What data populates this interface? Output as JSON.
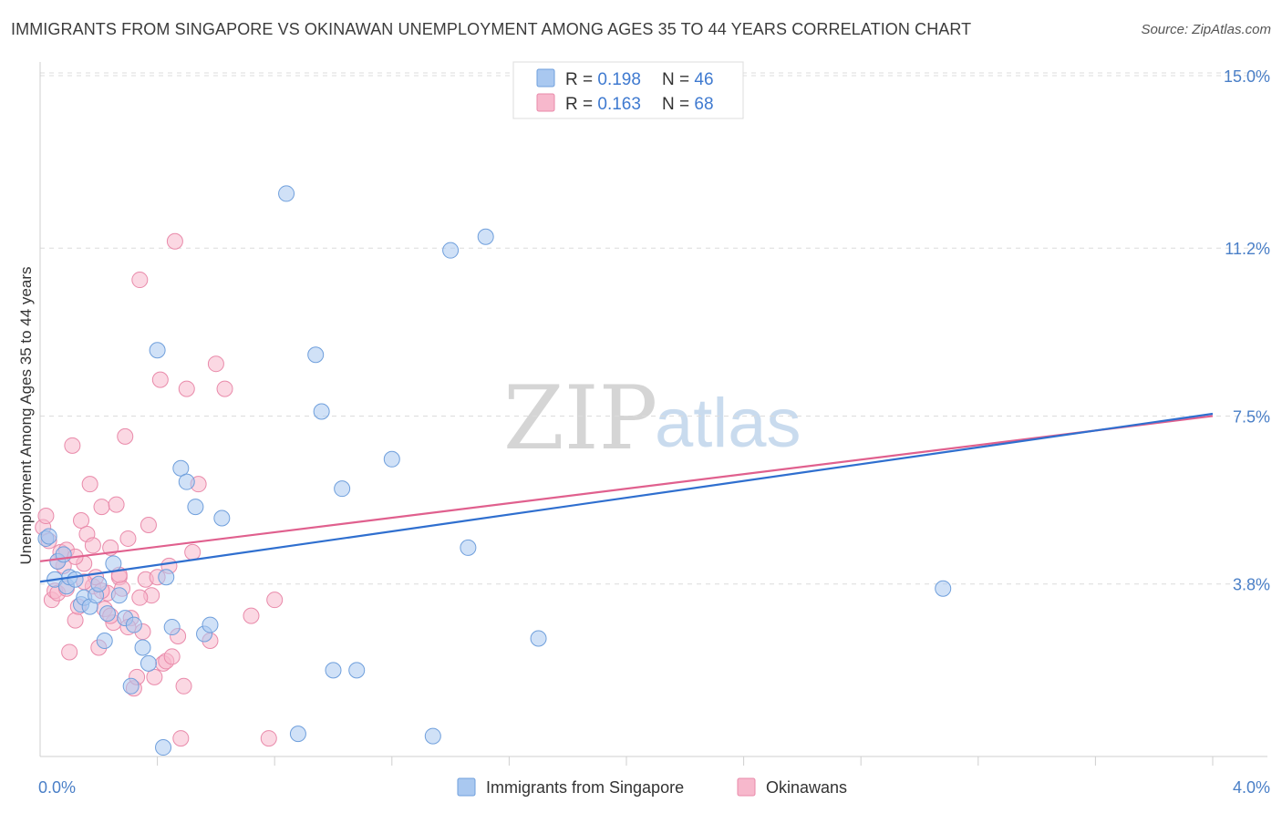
{
  "header": {
    "title": "IMMIGRANTS FROM SINGAPORE VS OKINAWAN UNEMPLOYMENT AMONG AGES 35 TO 44 YEARS CORRELATION CHART",
    "source": "Source: ZipAtlas.com"
  },
  "watermark": {
    "zip": "ZIP",
    "atlas": "atlas"
  },
  "legend_top": {
    "rows": [
      {
        "r_label": "R = ",
        "r_value": "0.198",
        "n_label": "N = ",
        "n_value": "46"
      },
      {
        "r_label": "R = ",
        "r_value": "0.163",
        "n_label": "N = ",
        "n_value": "68"
      }
    ]
  },
  "colors": {
    "singapore_fill": "#a9c8f0",
    "singapore_stroke": "#6f9fdc",
    "singapore_line": "#2f6fcf",
    "okinawan_fill": "#f7b8cc",
    "okinawan_stroke": "#e98aaa",
    "okinawan_line": "#e0608e",
    "tick_color": "#4a7fc7",
    "grid_color": "#dcdcdc"
  },
  "chart_data": {
    "type": "scatter",
    "title": "IMMIGRANTS FROM SINGAPORE VS OKINAWAN UNEMPLOYMENT AMONG AGES 35 TO 44 YEARS CORRELATION CHART",
    "xlabel": "",
    "ylabel": "Unemployment Among Ages 35 to 44 years",
    "xlim": [
      0,
      4.0
    ],
    "ylim": [
      0,
      15.3
    ],
    "x_tick_labels": [
      "0.0%",
      "4.0%"
    ],
    "y_ticks": [
      3.8,
      7.5,
      11.2,
      15.0
    ],
    "y_tick_labels": [
      "3.8%",
      "7.5%",
      "11.2%",
      "15.0%"
    ],
    "legend": [
      "Immigrants from Singapore",
      "Okinawans"
    ],
    "series": [
      {
        "name": "Immigrants from Singapore",
        "R": 0.198,
        "N": 46,
        "trend": {
          "x": [
            0.0,
            4.0
          ],
          "y": [
            3.85,
            7.55
          ]
        },
        "points": [
          [
            0.02,
            4.8
          ],
          [
            0.03,
            4.85
          ],
          [
            0.05,
            3.9
          ],
          [
            0.06,
            4.3
          ],
          [
            0.09,
            3.75
          ],
          [
            0.1,
            3.95
          ],
          [
            0.12,
            3.9
          ],
          [
            0.14,
            3.35
          ],
          [
            0.15,
            3.5
          ],
          [
            0.17,
            3.3
          ],
          [
            0.19,
            3.55
          ],
          [
            0.2,
            3.8
          ],
          [
            0.22,
            2.55
          ],
          [
            0.23,
            3.15
          ],
          [
            0.25,
            4.25
          ],
          [
            0.27,
            3.55
          ],
          [
            0.29,
            3.05
          ],
          [
            0.31,
            1.55
          ],
          [
            0.32,
            2.9
          ],
          [
            0.35,
            2.4
          ],
          [
            0.37,
            2.05
          ],
          [
            0.4,
            8.95
          ],
          [
            0.42,
            0.2
          ],
          [
            0.43,
            3.95
          ],
          [
            0.45,
            2.85
          ],
          [
            0.48,
            6.35
          ],
          [
            0.5,
            6.05
          ],
          [
            0.53,
            5.5
          ],
          [
            0.56,
            2.7
          ],
          [
            0.58,
            2.9
          ],
          [
            0.62,
            5.25
          ],
          [
            0.84,
            12.4
          ],
          [
            0.88,
            0.5
          ],
          [
            0.94,
            8.85
          ],
          [
            0.96,
            7.6
          ],
          [
            1.0,
            1.9
          ],
          [
            1.03,
            5.9
          ],
          [
            1.08,
            1.9
          ],
          [
            1.2,
            6.55
          ],
          [
            1.34,
            0.45
          ],
          [
            1.4,
            11.15
          ],
          [
            1.46,
            4.6
          ],
          [
            1.52,
            11.45
          ],
          [
            1.7,
            2.6
          ],
          [
            3.08,
            3.7
          ],
          [
            0.08,
            4.45
          ]
        ]
      },
      {
        "name": "Okinawans",
        "R": 0.163,
        "N": 68,
        "trend": {
          "x": [
            0.0,
            4.0
          ],
          "y": [
            4.3,
            7.5
          ]
        },
        "points": [
          [
            0.01,
            5.05
          ],
          [
            0.02,
            5.3
          ],
          [
            0.03,
            4.75
          ],
          [
            0.04,
            3.45
          ],
          [
            0.05,
            3.65
          ],
          [
            0.06,
            3.6
          ],
          [
            0.07,
            4.5
          ],
          [
            0.08,
            4.2
          ],
          [
            0.09,
            4.55
          ],
          [
            0.1,
            2.3
          ],
          [
            0.11,
            6.85
          ],
          [
            0.12,
            3.0
          ],
          [
            0.13,
            3.3
          ],
          [
            0.14,
            5.2
          ],
          [
            0.15,
            4.25
          ],
          [
            0.16,
            4.9
          ],
          [
            0.17,
            6.0
          ],
          [
            0.18,
            3.75
          ],
          [
            0.19,
            3.95
          ],
          [
            0.2,
            2.4
          ],
          [
            0.21,
            5.5
          ],
          [
            0.22,
            3.25
          ],
          [
            0.23,
            3.6
          ],
          [
            0.24,
            4.6
          ],
          [
            0.25,
            2.95
          ],
          [
            0.26,
            5.55
          ],
          [
            0.27,
            3.95
          ],
          [
            0.28,
            3.7
          ],
          [
            0.29,
            7.05
          ],
          [
            0.3,
            4.8
          ],
          [
            0.31,
            3.05
          ],
          [
            0.32,
            1.5
          ],
          [
            0.33,
            1.75
          ],
          [
            0.34,
            10.5
          ],
          [
            0.35,
            2.75
          ],
          [
            0.36,
            3.9
          ],
          [
            0.37,
            5.1
          ],
          [
            0.38,
            3.55
          ],
          [
            0.39,
            1.75
          ],
          [
            0.4,
            3.95
          ],
          [
            0.41,
            8.3
          ],
          [
            0.42,
            2.05
          ],
          [
            0.43,
            2.1
          ],
          [
            0.44,
            4.2
          ],
          [
            0.45,
            2.2
          ],
          [
            0.46,
            11.35
          ],
          [
            0.47,
            2.65
          ],
          [
            0.48,
            0.4
          ],
          [
            0.49,
            1.55
          ],
          [
            0.5,
            8.1
          ],
          [
            0.52,
            4.5
          ],
          [
            0.54,
            6.0
          ],
          [
            0.58,
            2.55
          ],
          [
            0.6,
            8.65
          ],
          [
            0.63,
            8.1
          ],
          [
            0.72,
            3.1
          ],
          [
            0.78,
            0.4
          ],
          [
            0.8,
            3.45
          ],
          [
            0.06,
            4.3
          ],
          [
            0.09,
            3.7
          ],
          [
            0.12,
            4.4
          ],
          [
            0.15,
            3.85
          ],
          [
            0.18,
            4.65
          ],
          [
            0.21,
            3.65
          ],
          [
            0.24,
            3.1
          ],
          [
            0.27,
            4.0
          ],
          [
            0.3,
            2.85
          ],
          [
            0.34,
            3.5
          ]
        ]
      }
    ]
  },
  "legend_bottom": {
    "items": [
      {
        "label": "Immigrants from Singapore"
      },
      {
        "label": "Okinawans"
      }
    ]
  }
}
